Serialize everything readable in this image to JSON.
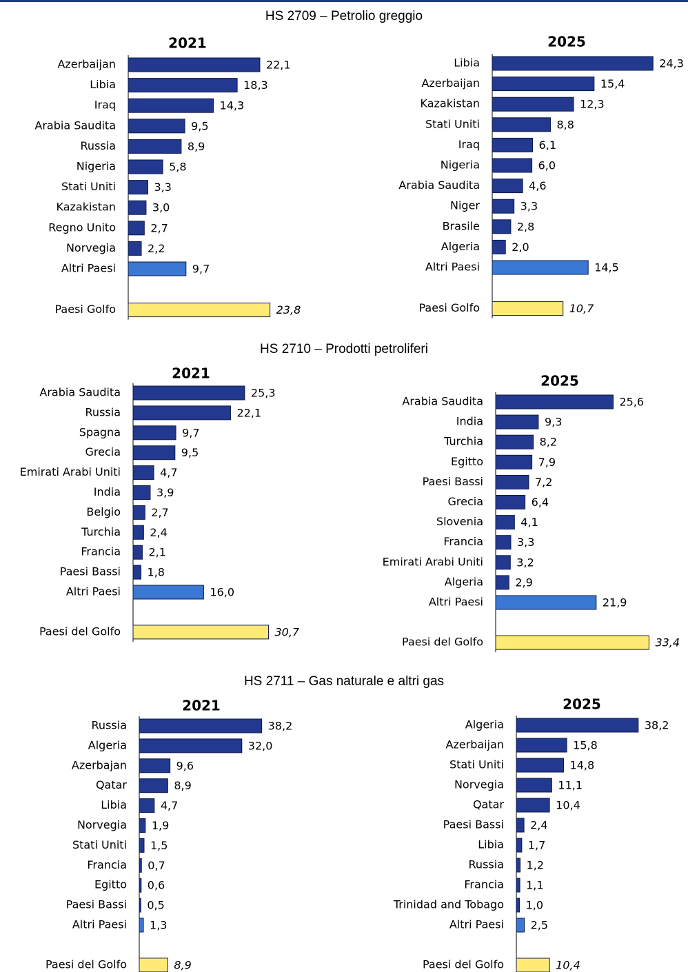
{
  "colors": {
    "top_bar": "#1f3a8f",
    "country_bar": "#22398f",
    "others_bar": "#3a78d4",
    "gulf_bar": "#ffea75",
    "bar_outline": "#0e1a4a"
  },
  "chart_data": [
    {
      "type": "bar",
      "orientation": "horizontal",
      "section": "HS 2709 – Petrolio greggio",
      "title": "2021",
      "categories": [
        "Azerbaijan",
        "Libia",
        "Iraq",
        "Arabia Saudita",
        "Russia",
        "Nigeria",
        "Stati Uniti",
        "Kazakistan",
        "Regno Unito",
        "Norvegia",
        "Altri Paesi",
        "Paesi Golfo"
      ],
      "labels": [
        "22,1",
        "18,3",
        "14,3",
        "9,5",
        "8,9",
        "5,8",
        "3,3",
        "3,0",
        "2,7",
        "2,2",
        "9,7",
        "23,8"
      ],
      "values": [
        22.1,
        18.3,
        14.3,
        9.5,
        8.9,
        5.8,
        3.3,
        3.0,
        2.7,
        2.2,
        9.7,
        23.8
      ]
    },
    {
      "type": "bar",
      "orientation": "horizontal",
      "section": "HS 2709 – Petrolio greggio",
      "title": "2025",
      "categories": [
        "Libia",
        "Azerbaijan",
        "Kazakistan",
        "Stati Uniti",
        "Iraq",
        "Nigeria",
        "Arabia Saudita",
        "Niger",
        "Brasile",
        "Algeria",
        "Altri Paesi",
        "Paesi Golfo"
      ],
      "labels": [
        "24,3",
        "15,4",
        "12,3",
        "8,8",
        "6,1",
        "6,0",
        "4,6",
        "3,3",
        "2,8",
        "2,0",
        "14,5",
        "10,7"
      ],
      "values": [
        24.3,
        15.4,
        12.3,
        8.8,
        6.1,
        6.0,
        4.6,
        3.3,
        2.8,
        2.0,
        14.5,
        10.7
      ]
    },
    {
      "type": "bar",
      "orientation": "horizontal",
      "section": "HS 2710 – Prodotti petroliferi",
      "title": "2021",
      "categories": [
        "Arabia Saudita",
        "Russia",
        "Spagna",
        "Grecia",
        "Emirati Arabi Uniti",
        "India",
        "Belgio",
        "Turchia",
        "Francia",
        "Paesi Bassi",
        "Altri Paesi",
        "Paesi del Golfo"
      ],
      "labels": [
        "25,3",
        "22,1",
        "9,7",
        "9,5",
        "4,7",
        "3,9",
        "2,7",
        "2,4",
        "2,1",
        "1,8",
        "16,0",
        "30,7"
      ],
      "values": [
        25.3,
        22.1,
        9.7,
        9.5,
        4.7,
        3.9,
        2.7,
        2.4,
        2.1,
        1.8,
        16.0,
        30.7
      ]
    },
    {
      "type": "bar",
      "orientation": "horizontal",
      "section": "HS 2710 – Prodotti petroliferi",
      "title": "2025",
      "categories": [
        "Arabia Saudita",
        "India",
        "Turchia",
        "Egitto",
        "Paesi Bassi",
        "Grecia",
        "Slovenia",
        "Francia",
        "Emirati Arabi Uniti",
        "Algeria",
        "Altri Paesi",
        "Paesi del Golfo"
      ],
      "labels": [
        "25,6",
        "9,3",
        "8,2",
        "7,9",
        "7,2",
        "6,4",
        "4,1",
        "3,3",
        "3,2",
        "2,9",
        "21,9",
        "33,4"
      ],
      "values": [
        25.6,
        9.3,
        8.2,
        7.9,
        7.2,
        6.4,
        4.1,
        3.3,
        3.2,
        2.9,
        21.9,
        33.4
      ]
    },
    {
      "type": "bar",
      "orientation": "horizontal",
      "section": "HS 2711 – Gas naturale e altri gas",
      "title": "2021",
      "categories": [
        "Russia",
        "Algeria",
        "Azerbajan",
        "Qatar",
        "Libia",
        "Norvegia",
        "Stati Uniti",
        "Francia",
        "Egitto",
        "Paesi Bassi",
        "Altri Paesi",
        "Paesi del Golfo"
      ],
      "labels": [
        "38,2",
        "32,0",
        "9,6",
        "8,9",
        "4,7",
        "1,9",
        "1,5",
        "0,7",
        "0,6",
        "0,5",
        "1,3",
        "8,9"
      ],
      "values": [
        38.2,
        32.0,
        9.6,
        8.9,
        4.7,
        1.9,
        1.5,
        0.7,
        0.6,
        0.5,
        1.3,
        8.9
      ]
    },
    {
      "type": "bar",
      "orientation": "horizontal",
      "section": "HS 2711 – Gas naturale e altri gas",
      "title": "2025",
      "categories": [
        "Algeria",
        "Azerbaijan",
        "Stati Uniti",
        "Norvegia",
        "Qatar",
        "Paesi Bassi",
        "Libia",
        "Russia",
        "Francia",
        "Trinidad and Tobago",
        "Altri Paesi",
        "Paesi del Golfo"
      ],
      "labels": [
        "38,2",
        "15,8",
        "14,8",
        "11,1",
        "10,4",
        "2,4",
        "1,7",
        "1,2",
        "1,1",
        "1,0",
        "2,5",
        "10,4"
      ],
      "values": [
        38.2,
        15.8,
        14.8,
        11.1,
        10.4,
        2.4,
        1.7,
        1.2,
        1.1,
        1.0,
        2.5,
        10.4
      ]
    }
  ]
}
